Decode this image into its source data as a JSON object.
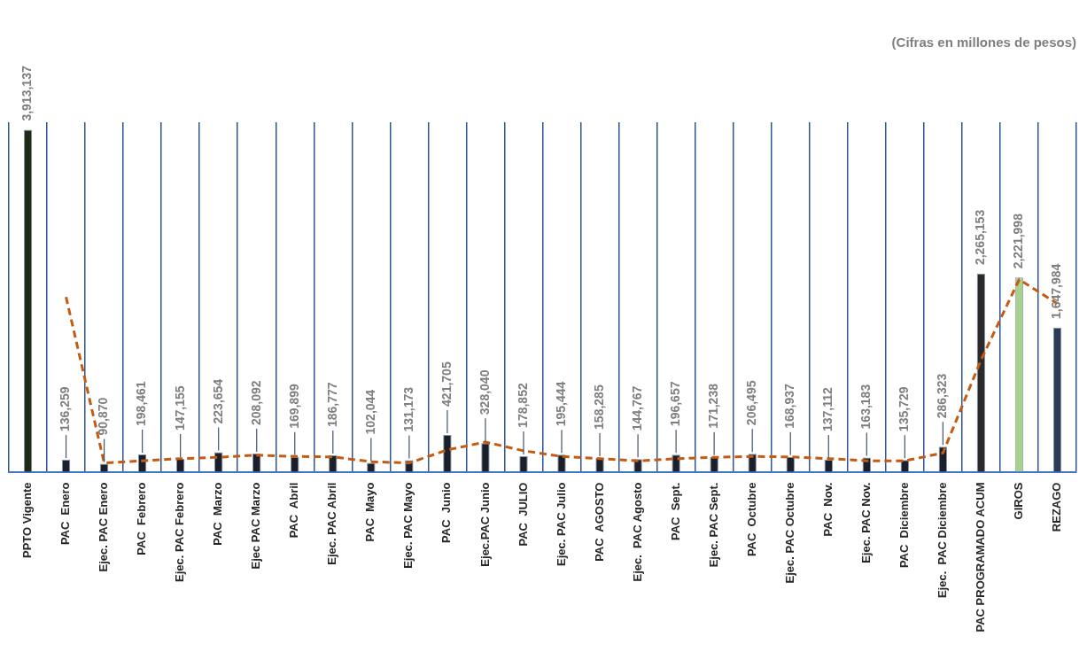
{
  "chart_data": {
    "type": "bar",
    "title": "(Cifras en millones de pesos)",
    "categories": [
      "PPTO Vigente",
      "PAC  Enero",
      "Ejec. PAC Enero",
      "PAC  Febrero",
      "Ejec. PAC Febrero",
      "PAC  Marzo",
      "Ejec PAC Marzo",
      "PAC  Abril",
      "Ejec. PAC Abril",
      "PAC  Mayo",
      "Ejec. PAC Mayo",
      "PAC  Junio",
      "Ejec.PAC Junio",
      "PAC  JULIO",
      "Ejec. PAC Julio",
      "PAC  AGOSTO",
      "Ejec.  PAC Agosto",
      "PAC  Sept.",
      "Ejec. PAC Sept.",
      "PAC  Octubre",
      "Ejec. PAC Octubre",
      "PAC  Nov.",
      "Ejec. PAC Nov.",
      "PAC  Diciembre",
      "Ejec.  PAC Diciembre",
      "PAC PROGRAMADO ACUM",
      "GIROS",
      "REZAGO"
    ],
    "series": [
      {
        "value_labels": [
          "3,913,137",
          "136,259",
          "90,870",
          "198,461",
          "147,155",
          "223,654",
          "208,092",
          "169,899",
          "186,777",
          "102,044",
          "131,173",
          "421,705",
          "328,040",
          "178,852",
          "195,444",
          "158,285",
          "144,767",
          "196,657",
          "171,238",
          "206,495",
          "168,937",
          "137,112",
          "163,183",
          "135,729",
          "286,323",
          "2,265,153",
          "2,221,998",
          "1,647,984"
        ],
        "values": [
          3913137,
          136259,
          90870,
          198461,
          147155,
          223654,
          208092,
          169899,
          186777,
          102044,
          131173,
          421705,
          328040,
          178852,
          195444,
          158285,
          144767,
          196657,
          171238,
          206495,
          168937,
          137112,
          163183,
          135729,
          286323,
          2265153,
          2221998,
          1647984
        ],
        "colors": [
          "#1d2b14",
          "#1a1f2b",
          "#1a1f2b",
          "#1a1f2b",
          "#1a1f2b",
          "#1a1f2b",
          "#1a1f2b",
          "#1a1f2b",
          "#1a1f2b",
          "#1a1f2b",
          "#1a1f2b",
          "#1a1f2b",
          "#1a1f2b",
          "#1a1f2b",
          "#1a1f2b",
          "#1a1f2b",
          "#1a1f2b",
          "#1a1f2b",
          "#1a1f2b",
          "#1a1f2b",
          "#1a1f2b",
          "#1a1f2b",
          "#1a1f2b",
          "#1a1f2b",
          "#1a1f2b",
          "#2a2a2a",
          "#a9d18e",
          "#2b3a55"
        ]
      },
      {
        "type": "line",
        "color": "#c55a11",
        "line_style": "dashed",
        "values": [
          null,
          2000000,
          100000,
          125000,
          150000,
          165000,
          190000,
          175000,
          170000,
          115000,
          100000,
          250000,
          340000,
          240000,
          175000,
          150000,
          125000,
          150000,
          165000,
          175000,
          170000,
          150000,
          125000,
          125000,
          215000,
          1280000,
          2200000,
          1925000
        ]
      }
    ],
    "grid": "x",
    "legend": false,
    "tick_labels": "x"
  }
}
